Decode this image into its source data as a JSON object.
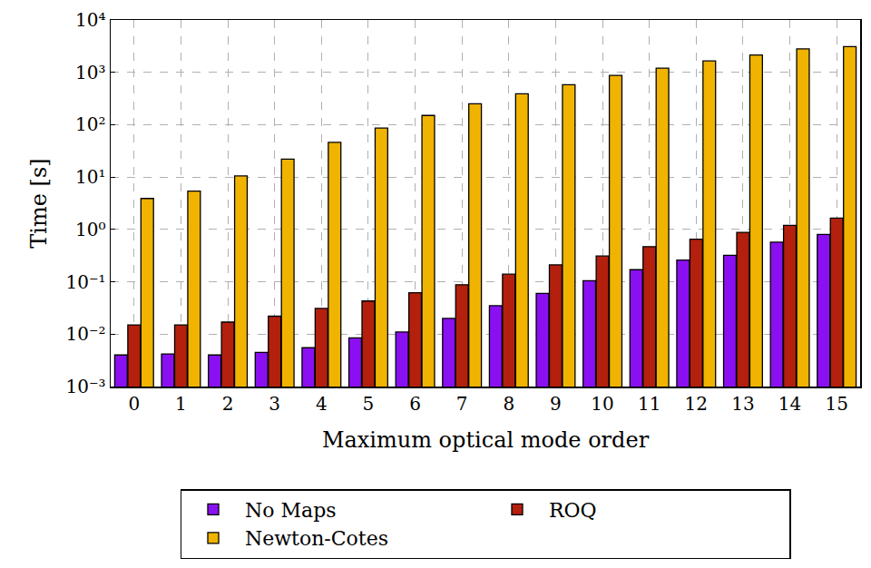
{
  "chart_data": {
    "type": "bar",
    "x_label": "Maximum optical mode order",
    "y_label": "Time [s]",
    "categories": [
      "0",
      "1",
      "2",
      "3",
      "4",
      "5",
      "6",
      "7",
      "8",
      "9",
      "10",
      "11",
      "12",
      "13",
      "14",
      "15"
    ],
    "series": [
      {
        "name": "No Maps",
        "color": "#8a10f2",
        "values": [
          0.004,
          0.0042,
          0.004,
          0.0045,
          0.0055,
          0.0085,
          0.011,
          0.02,
          0.035,
          0.06,
          0.105,
          0.17,
          0.26,
          0.32,
          0.57,
          0.8
        ]
      },
      {
        "name": "ROQ",
        "color": "#b3200e",
        "values": [
          0.015,
          0.015,
          0.017,
          0.022,
          0.031,
          0.043,
          0.062,
          0.088,
          0.14,
          0.21,
          0.31,
          0.47,
          0.65,
          0.88,
          1.2,
          1.65
        ]
      },
      {
        "name": "Newton-Cotes",
        "color": "#f0b400",
        "values": [
          3.9,
          5.4,
          10.5,
          22,
          46,
          86,
          150,
          250,
          390,
          580,
          870,
          1200,
          1650,
          2150,
          2800,
          3100
        ]
      }
    ],
    "log": "y",
    "ylim": [
      0.001,
      10000
    ],
    "yticks": [
      {
        "value": 0.001,
        "label": "10⁻³"
      },
      {
        "value": 0.01,
        "label": "10⁻²"
      },
      {
        "value": 0.1,
        "label": "10⁻¹"
      },
      {
        "value": 1,
        "label": "10⁰"
      },
      {
        "value": 10,
        "label": "10¹"
      },
      {
        "value": 100,
        "label": "10²"
      },
      {
        "value": 1000,
        "label": "10³"
      },
      {
        "value": 10000,
        "label": "10⁴"
      }
    ],
    "grid": true,
    "legend": "bottom"
  }
}
